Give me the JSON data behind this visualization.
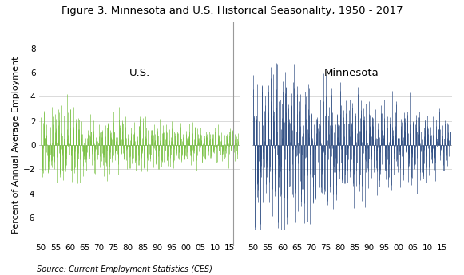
{
  "title": "Figure 3. Minnesota and U.S. Historical Seasonality, 1950 - 2017",
  "ylabel": "Percent of Annual Average Employment",
  "source": "Source: Current Employment Statistics (CES)",
  "ylim": [
    -8,
    8
  ],
  "yticks": [
    -6,
    -4,
    -2,
    0,
    2,
    4,
    6,
    8
  ],
  "xtick_labels": [
    "50",
    "55",
    "60",
    "65",
    "70",
    "75",
    "80",
    "85",
    "90",
    "95",
    "00",
    "05",
    "10",
    "15"
  ],
  "us_label": "U.S.",
  "mn_label": "Minnesota",
  "us_color": "#77C040",
  "mn_color": "#2B4A80",
  "background_color": "#ffffff",
  "grid_color": "#cccccc",
  "title_fontsize": 9.5,
  "label_fontsize": 8,
  "tick_fontsize": 7.5,
  "source_fontsize": 7
}
